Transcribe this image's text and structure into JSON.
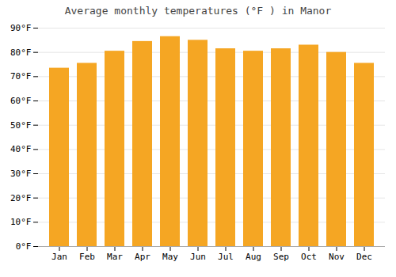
{
  "chart_data": {
    "type": "bar",
    "title": "Average monthly temperatures (°F ) in Manor",
    "categories": [
      "Jan",
      "Feb",
      "Mar",
      "Apr",
      "May",
      "Jun",
      "Jul",
      "Aug",
      "Sep",
      "Oct",
      "Nov",
      "Dec"
    ],
    "values": [
      73.5,
      75.5,
      80.5,
      84.5,
      86.5,
      85.0,
      81.5,
      80.5,
      81.5,
      83.0,
      80.0,
      75.5
    ],
    "color": "#F5A623",
    "ylim": [
      0,
      90
    ],
    "yticks": [
      {
        "value": 0,
        "label": "0°F"
      },
      {
        "value": 10,
        "label": "10°F"
      },
      {
        "value": 20,
        "label": "20°F"
      },
      {
        "value": 30,
        "label": "30°F"
      },
      {
        "value": 40,
        "label": "40°F"
      },
      {
        "value": 50,
        "label": "50°F"
      },
      {
        "value": 60,
        "label": "60°F"
      },
      {
        "value": 70,
        "label": "70°F"
      },
      {
        "value": 80,
        "label": "80°F"
      },
      {
        "value": 90,
        "label": "90°F"
      }
    ],
    "grid": true
  }
}
